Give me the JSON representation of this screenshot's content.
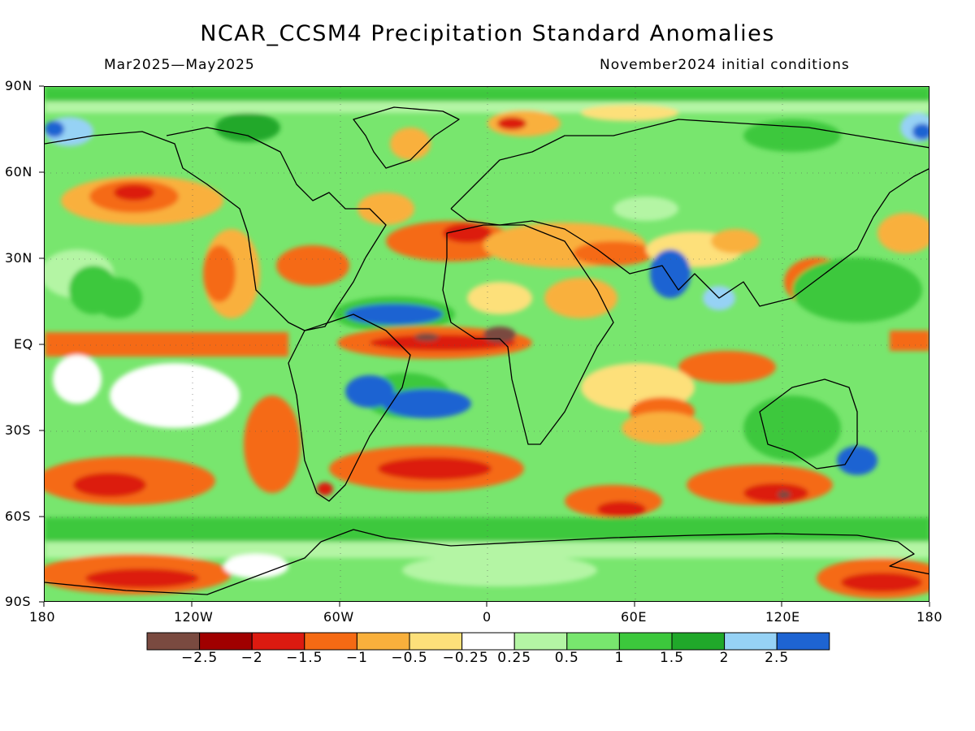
{
  "title": "NCAR_CCSM4 Precipitation Standard Anomalies",
  "period": "Mar2025—May2025",
  "initial_conditions": "November2024 initial conditions",
  "axes": {
    "lat_labels": [
      "90N",
      "60N",
      "30N",
      "EQ",
      "30S",
      "60S",
      "90S"
    ],
    "lon_labels": [
      "180",
      "120W",
      "60W",
      "0",
      "60E",
      "120E",
      "180"
    ]
  },
  "legend": {
    "colors": [
      "#7a4a40",
      "#a00000",
      "#dc1a10",
      "#f56a14",
      "#f9b03c",
      "#fde07a",
      "#ffffff",
      "#b4f5a4",
      "#78e66e",
      "#3cc83c",
      "#20a82a",
      "#96d2f5",
      "#1e64d2"
    ],
    "labels": [
      "−2.5",
      "−2",
      "−1.5",
      "−1",
      "−0.5",
      "−0.25",
      "0.25",
      "0.5",
      "1",
      "1.5",
      "2",
      "2.5"
    ]
  },
  "colors": {
    "ocean_base": "#78e66e",
    "coastline": "#000000"
  }
}
